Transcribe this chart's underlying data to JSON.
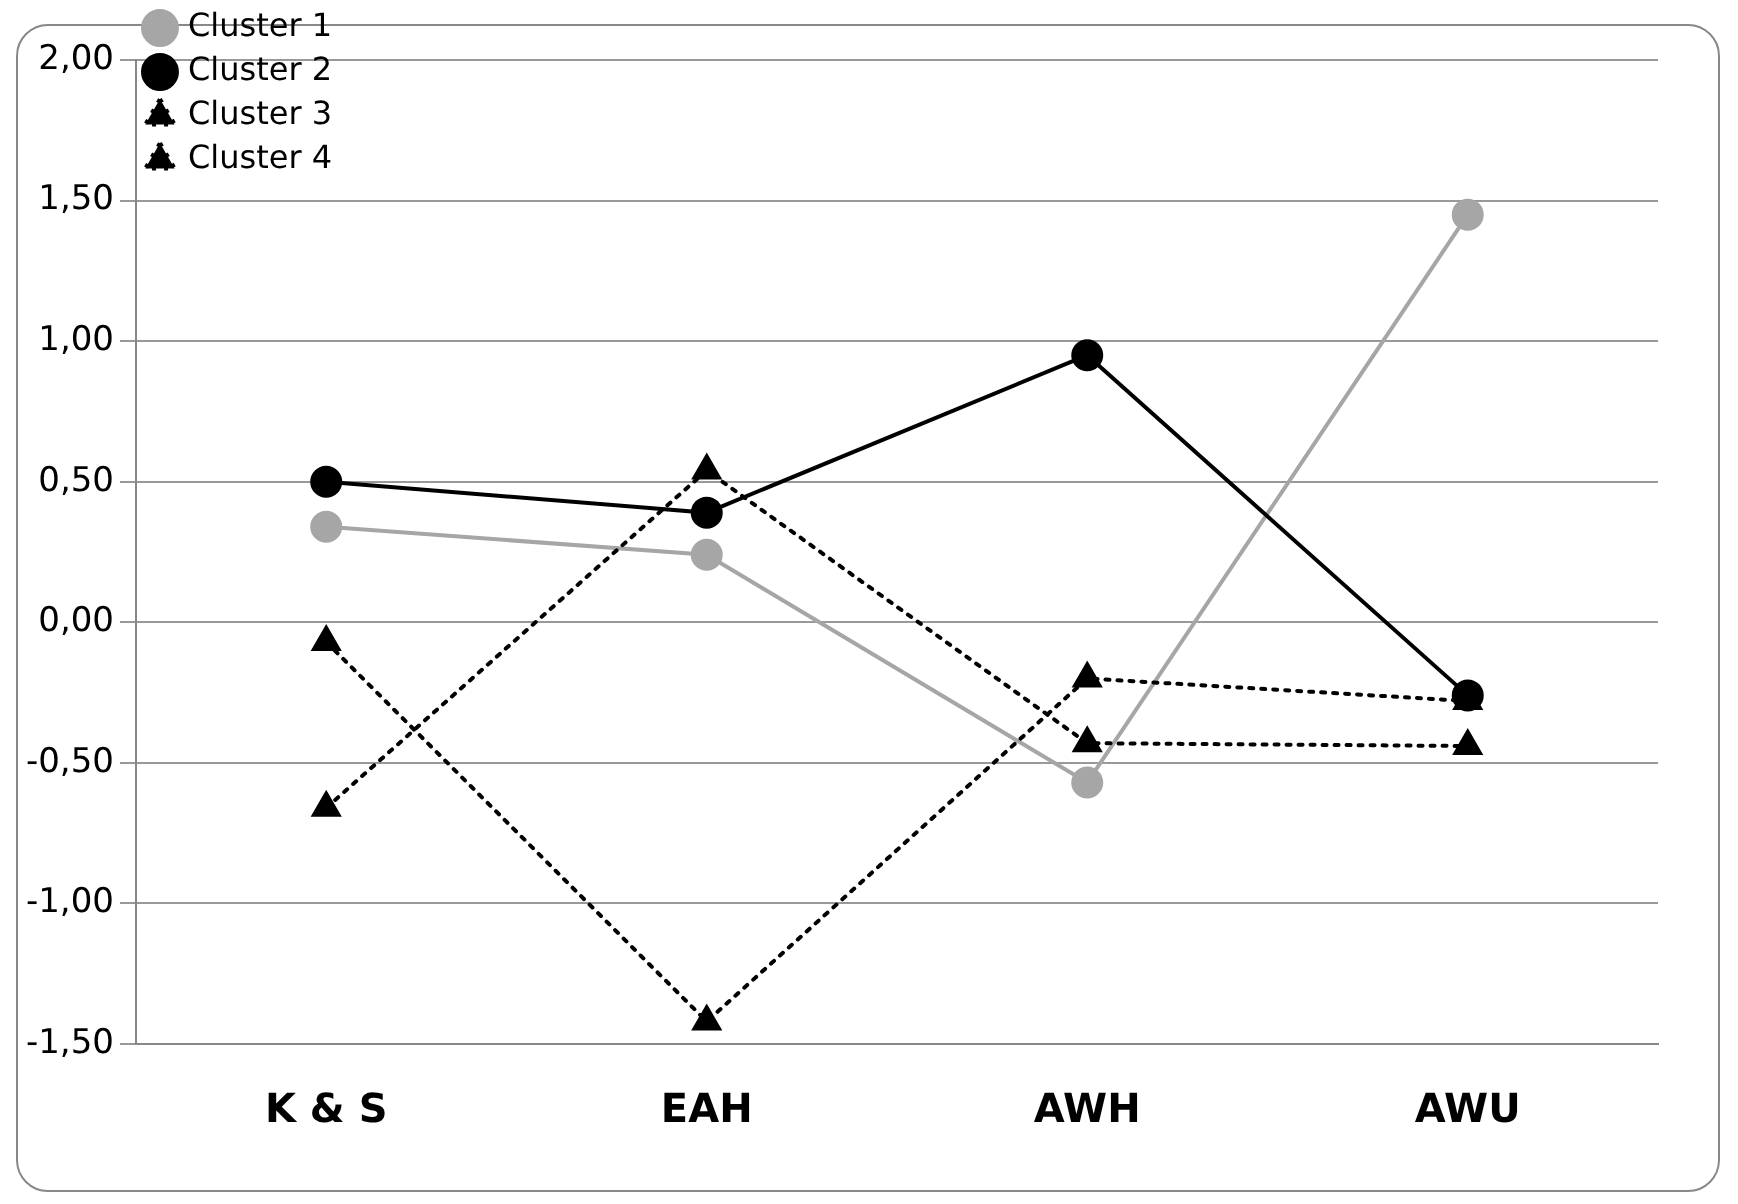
{
  "chart_data": {
    "type": "line",
    "categories": [
      "K & S",
      "EAH",
      "AWH",
      "AWU"
    ],
    "series": [
      {
        "name": "Cluster 1",
        "color": "#a6a6a6",
        "marker": "circle",
        "line_style": "solid",
        "values": [
          0.34,
          0.24,
          -0.57,
          1.45
        ]
      },
      {
        "name": "Cluster 2",
        "color": "#000000",
        "marker": "circle",
        "line_style": "solid",
        "values": [
          0.5,
          0.39,
          0.95,
          -0.26
        ]
      },
      {
        "name": "Cluster 3",
        "color": "#000000",
        "marker": "triangle",
        "line_style": "dotted",
        "values": [
          -0.66,
          0.54,
          -0.43,
          -0.44
        ]
      },
      {
        "name": "Cluster 4",
        "color": "#000000",
        "marker": "triangle",
        "line_style": "dotted",
        "values": [
          -0.07,
          -1.42,
          -0.2,
          -0.28
        ]
      }
    ],
    "ylim": [
      -1.5,
      2
    ],
    "yticks": [
      {
        "value": -1.5,
        "label": "-1,50"
      },
      {
        "value": -1,
        "label": "-1,00"
      },
      {
        "value": -0.5,
        "label": "-0,50"
      },
      {
        "value": 0,
        "label": "0,00"
      },
      {
        "value": 0.5,
        "label": "0,50"
      },
      {
        "value": 1,
        "label": "1,00"
      },
      {
        "value": 1.5,
        "label": "1,50"
      },
      {
        "value": 2,
        "label": "2,00"
      }
    ],
    "grid": "y",
    "legend": "top left"
  }
}
